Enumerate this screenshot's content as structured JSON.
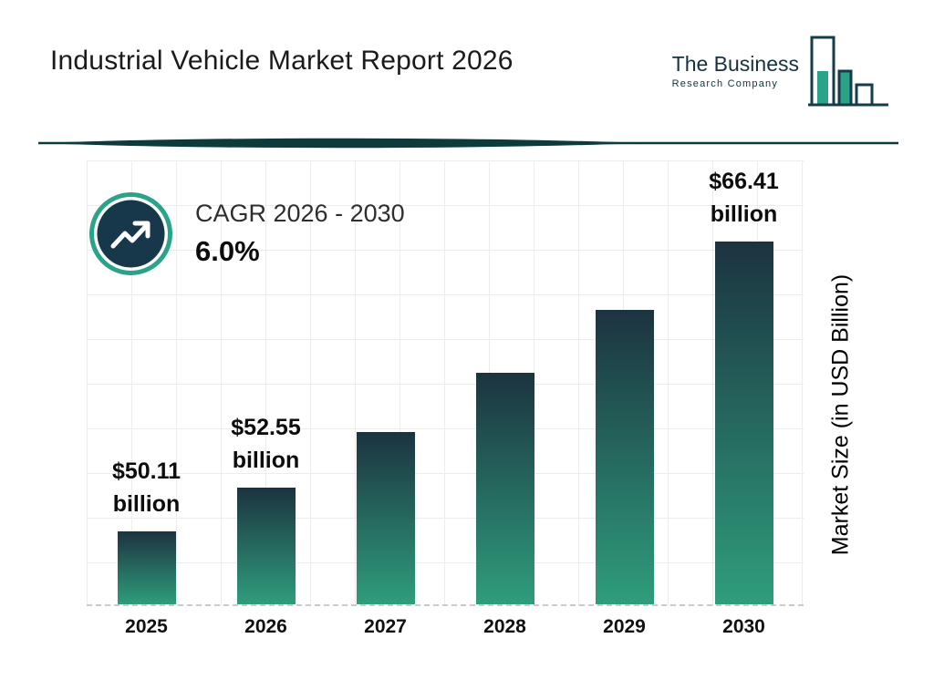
{
  "header": {
    "title": "Industrial Vehicle Market Report 2026",
    "logo": {
      "line1": "The Business",
      "line2": "Research Company"
    }
  },
  "cagr": {
    "label": "CAGR 2026 - 2030",
    "value": "6.0%"
  },
  "chart_data": {
    "type": "bar",
    "title": "Industrial Vehicle Market Report 2026",
    "categories": [
      "2025",
      "2026",
      "2027",
      "2028",
      "2029",
      "2030"
    ],
    "values": [
      50.11,
      52.55,
      55.7,
      59.05,
      62.59,
      66.41
    ],
    "value_labels": [
      [
        "$50.11",
        "billion"
      ],
      [
        "$52.55",
        "billion"
      ],
      null,
      null,
      null,
      [
        "$66.41",
        "billion"
      ]
    ],
    "unit": "USD Billion",
    "xlabel": "",
    "ylabel": "Market Size (in USD Billion)",
    "ylim": [
      46,
      71
    ],
    "grid": true,
    "legend": "none",
    "bar_gradient_top": "#1c3340",
    "bar_gradient_bottom": "#2f9d7c"
  },
  "colors": {
    "accent_teal": "#2aa389",
    "dark_navy": "#17384a",
    "divider_teal": "#0d3b3b",
    "grid_line": "#ececec",
    "dashed_baseline": "#c9c9c9",
    "text_dark": "#1a1a1a"
  }
}
